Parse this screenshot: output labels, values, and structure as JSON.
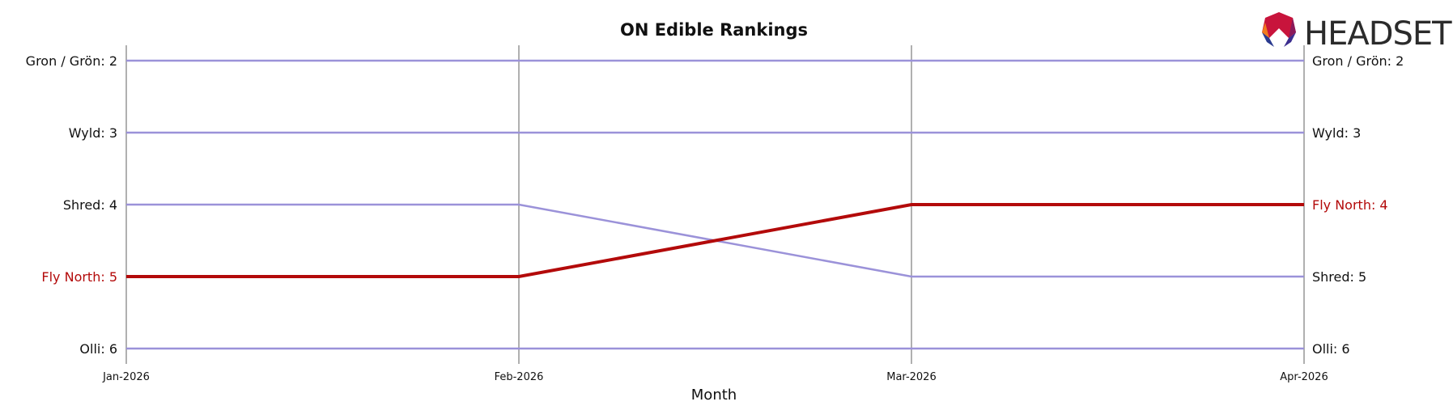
{
  "chart_data": {
    "type": "line",
    "title": "ON Edible Rankings",
    "xlabel": "Month",
    "ylabel": "",
    "x": [
      "Jan-2026",
      "Feb-2026",
      "Mar-2026",
      "Apr-2026"
    ],
    "y_inverted": true,
    "ylim": [
      6,
      2
    ],
    "grid": "vertical lines at each month",
    "series": [
      {
        "name": "Gron / Grön",
        "values": [
          2,
          2,
          2,
          2
        ],
        "highlight": false
      },
      {
        "name": "Wyld",
        "values": [
          3,
          3,
          3,
          3
        ],
        "highlight": false
      },
      {
        "name": "Shred",
        "values": [
          4,
          4,
          5,
          5
        ],
        "highlight": false
      },
      {
        "name": "Fly North",
        "values": [
          5,
          5,
          4,
          4
        ],
        "highlight": true
      },
      {
        "name": "Olli",
        "values": [
          6,
          6,
          6,
          6
        ],
        "highlight": false
      }
    ],
    "left_labels": [
      "Gron / Grön: 2",
      "Wyld: 3",
      "Shred: 4",
      "Fly North: 5",
      "Olli: 6"
    ],
    "right_labels": [
      "Gron / Grön: 2",
      "Wyld: 3",
      "Fly North: 4",
      "Shred: 5",
      "Olli: 6"
    ]
  },
  "logo": {
    "text": "HEADSET"
  },
  "colors": {
    "series_default": "#9b92d9",
    "series_highlight": "#b30a0a",
    "grid": "#b0b0b0",
    "text": "#111111"
  }
}
